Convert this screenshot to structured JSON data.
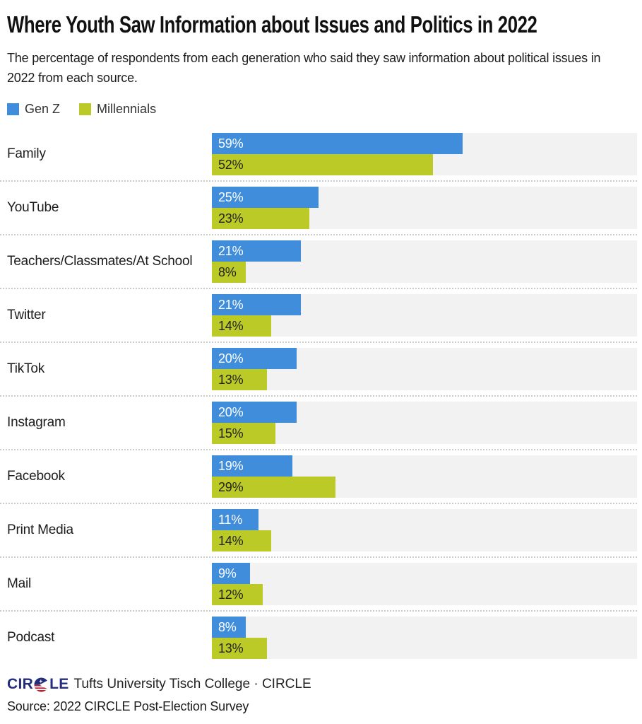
{
  "header": {
    "title": "Where Youth Saw Information about Issues and Politics in 2022",
    "subtitle": "The percentage of respondents from each generation who said they saw information about political issues in 2022 from each source."
  },
  "chart_data": {
    "type": "bar",
    "orientation": "horizontal",
    "title": "Where Youth Saw Information about Issues and Politics in 2022",
    "subtitle": "The percentage of respondents from each generation who said they saw information about political issues in 2022 from each source.",
    "categories": [
      "Family",
      "YouTube",
      "Teachers/Classmates/At School",
      "Twitter",
      "TikTok",
      "Instagram",
      "Facebook",
      "Print Media",
      "Mail",
      "Podcast"
    ],
    "series": [
      {
        "name": "Gen Z",
        "color": "#3f8ddb",
        "label_color": "#ffffff",
        "values": [
          59,
          25,
          21,
          21,
          20,
          20,
          19,
          11,
          9,
          8
        ]
      },
      {
        "name": "Millennials",
        "color": "#bcca28",
        "label_color": "#222222",
        "values": [
          52,
          23,
          8,
          14,
          13,
          15,
          29,
          14,
          12,
          13
        ]
      }
    ],
    "value_suffix": "%",
    "xlim": [
      0,
      100
    ],
    "grid": false,
    "legend_position": "top-left",
    "track_color": "#f2f2f2"
  },
  "footer": {
    "logo_prefix": "CIR",
    "logo_suffix": "LE",
    "logo_colors": {
      "navy": "#232e7d",
      "red": "#b22234"
    },
    "affiliation": "Tufts University Tisch College · CIRCLE",
    "source": "Source: 2022 CIRCLE Post-Election Survey"
  }
}
